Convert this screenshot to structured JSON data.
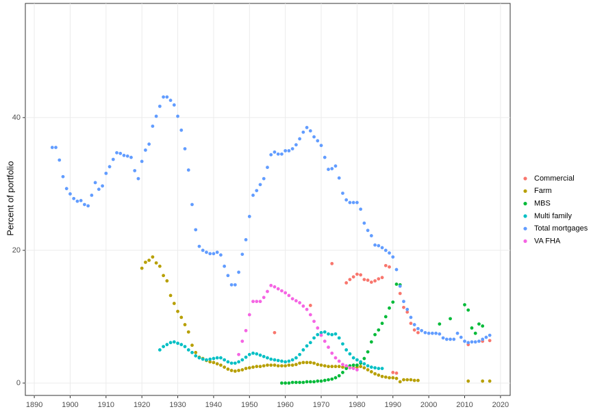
{
  "chart_data": {
    "type": "scatter",
    "y_label": "Percent of portfolio",
    "xlim": [
      1887.5,
      2022.7
    ],
    "ylim": [
      -1.86,
      57.2
    ],
    "xticks": [
      1890,
      1900,
      1910,
      1920,
      1930,
      1940,
      1950,
      1960,
      1970,
      1980,
      1990,
      2000,
      2010,
      2020
    ],
    "yticks": [
      0,
      20,
      40
    ],
    "grid": true,
    "legend": "right",
    "series": [
      {
        "name": "Commercial",
        "color": "#F8766D",
        "x": [
          1957,
          1967,
          1973,
          1977,
          1978,
          1979,
          1980,
          1981,
          1982,
          1983,
          1984,
          1985,
          1986,
          1987,
          1988,
          1989,
          1990,
          1991,
          1992,
          1993,
          1994,
          1995,
          1996,
          1997,
          2011,
          2015,
          2017
        ],
        "values": [
          7.6,
          11.7,
          18.0,
          15.1,
          15.6,
          16.0,
          16.4,
          16.3,
          15.6,
          15.5,
          15.2,
          15.4,
          15.7,
          15.9,
          17.7,
          17.5,
          1.6,
          1.5,
          13.5,
          11.4,
          10.7,
          9.0,
          8.0,
          7.6,
          5.8,
          6.3,
          6.4
        ]
      },
      {
        "name": "Farm",
        "color": "#B79F00",
        "x": [
          1920,
          1921,
          1922,
          1923,
          1924,
          1925,
          1926,
          1927,
          1928,
          1929,
          1930,
          1931,
          1932,
          1933,
          1934,
          1935,
          1936,
          1937,
          1938,
          1939,
          1940,
          1941,
          1942,
          1943,
          1944,
          1945,
          1946,
          1947,
          1948,
          1949,
          1950,
          1951,
          1952,
          1953,
          1954,
          1955,
          1956,
          1957,
          1958,
          1959,
          1960,
          1961,
          1962,
          1963,
          1964,
          1965,
          1966,
          1967,
          1968,
          1969,
          1970,
          1971,
          1972,
          1973,
          1974,
          1975,
          1976,
          1977,
          1978,
          1979,
          1980,
          1981,
          1982,
          1983,
          1984,
          1985,
          1986,
          1987,
          1988,
          1989,
          1990,
          1991,
          1992,
          1993,
          1994,
          1995,
          1996,
          1997,
          2011,
          2015,
          2017
        ],
        "values": [
          17.3,
          18.2,
          18.5,
          19.0,
          18.1,
          17.6,
          16.2,
          15.4,
          13.2,
          12.0,
          10.8,
          9.9,
          8.8,
          7.7,
          5.7,
          4.6,
          3.9,
          3.7,
          3.4,
          3.2,
          3.1,
          2.9,
          2.7,
          2.4,
          2.1,
          1.9,
          1.8,
          1.9,
          2.0,
          2.2,
          2.3,
          2.4,
          2.5,
          2.5,
          2.6,
          2.7,
          2.7,
          2.7,
          2.6,
          2.6,
          2.6,
          2.7,
          2.7,
          2.8,
          3.0,
          3.1,
          3.1,
          3.1,
          3.0,
          2.8,
          2.7,
          2.6,
          2.5,
          2.5,
          2.5,
          2.5,
          2.4,
          2.4,
          2.3,
          2.3,
          2.4,
          2.5,
          2.3,
          2.0,
          1.7,
          1.4,
          1.2,
          1.0,
          0.9,
          0.8,
          0.8,
          0.7,
          0.2,
          0.5,
          0.5,
          0.5,
          0.4,
          0.4,
          0.3,
          0.3,
          0.3
        ]
      },
      {
        "name": "MBS",
        "color": "#00BA38",
        "x": [
          1959,
          1960,
          1961,
          1962,
          1963,
          1964,
          1965,
          1966,
          1967,
          1968,
          1969,
          1970,
          1971,
          1972,
          1973,
          1974,
          1975,
          1976,
          1977,
          1978,
          1979,
          1980,
          1981,
          1982,
          1983,
          1984,
          1985,
          1986,
          1987,
          1988,
          1989,
          1990,
          1991,
          1992,
          2003,
          2006,
          2010,
          2011,
          2012,
          2013,
          2014,
          2015
        ],
        "values": [
          0.0,
          0.0,
          0.0,
          0.1,
          0.1,
          0.1,
          0.1,
          0.2,
          0.2,
          0.2,
          0.3,
          0.3,
          0.4,
          0.5,
          0.6,
          0.8,
          1.1,
          1.6,
          2.2,
          2.6,
          2.7,
          2.7,
          3.0,
          3.7,
          4.7,
          6.2,
          7.3,
          8.0,
          9.0,
          10.0,
          11.3,
          12.2,
          14.9,
          14.8,
          8.9,
          9.7,
          11.8,
          11.0,
          8.3,
          7.5,
          8.9,
          8.6
        ]
      },
      {
        "name": "Multi family",
        "color": "#00BFC4",
        "x": [
          1925,
          1926,
          1927,
          1928,
          1929,
          1930,
          1931,
          1932,
          1933,
          1934,
          1935,
          1936,
          1937,
          1938,
          1939,
          1940,
          1941,
          1942,
          1943,
          1944,
          1945,
          1946,
          1947,
          1948,
          1949,
          1950,
          1951,
          1952,
          1953,
          1954,
          1955,
          1956,
          1957,
          1958,
          1959,
          1960,
          1961,
          1962,
          1963,
          1964,
          1965,
          1966,
          1967,
          1968,
          1969,
          1970,
          1971,
          1972,
          1973,
          1974,
          1975,
          1976,
          1977,
          1978,
          1979,
          1980,
          1981,
          1982,
          1983,
          1984,
          1985,
          1986,
          1987
        ],
        "values": [
          5.0,
          5.5,
          5.8,
          6.1,
          6.2,
          6.0,
          5.8,
          5.5,
          5.0,
          4.6,
          4.1,
          3.8,
          3.6,
          3.5,
          3.6,
          3.7,
          3.8,
          3.8,
          3.5,
          3.2,
          3.0,
          3.0,
          3.2,
          3.5,
          3.9,
          4.3,
          4.5,
          4.4,
          4.2,
          4.0,
          3.8,
          3.6,
          3.5,
          3.4,
          3.3,
          3.2,
          3.3,
          3.5,
          3.8,
          4.3,
          5.0,
          5.6,
          6.1,
          6.8,
          7.3,
          7.6,
          7.7,
          7.4,
          7.3,
          7.4,
          6.8,
          5.9,
          5.0,
          4.4,
          3.8,
          3.5,
          3.2,
          2.9,
          2.6,
          2.4,
          2.3,
          2.2,
          2.2
        ]
      },
      {
        "name": "Total mortgages",
        "color": "#619CFF",
        "x": [
          1895,
          1896,
          1897,
          1898,
          1899,
          1900,
          1901,
          1902,
          1903,
          1904,
          1905,
          1906,
          1907,
          1908,
          1909,
          1910,
          1911,
          1912,
          1913,
          1914,
          1915,
          1916,
          1917,
          1918,
          1919,
          1920,
          1921,
          1922,
          1923,
          1924,
          1925,
          1926,
          1927,
          1928,
          1929,
          1930,
          1931,
          1932,
          1933,
          1934,
          1935,
          1936,
          1937,
          1938,
          1939,
          1940,
          1941,
          1942,
          1943,
          1944,
          1945,
          1946,
          1947,
          1948,
          1949,
          1950,
          1951,
          1952,
          1953,
          1954,
          1955,
          1956,
          1957,
          1958,
          1959,
          1960,
          1961,
          1962,
          1963,
          1964,
          1965,
          1966,
          1967,
          1968,
          1969,
          1970,
          1971,
          1972,
          1973,
          1974,
          1975,
          1976,
          1977,
          1978,
          1979,
          1980,
          1981,
          1982,
          1983,
          1984,
          1985,
          1986,
          1987,
          1988,
          1989,
          1990,
          1991,
          1992,
          1993,
          1994,
          1995,
          1996,
          1997,
          1998,
          1999,
          2000,
          2001,
          2002,
          2003,
          2004,
          2005,
          2006,
          2007,
          2008,
          2009,
          2010,
          2011,
          2012,
          2013,
          2014,
          2015,
          2016,
          2017
        ],
        "values": [
          35.5,
          35.5,
          33.6,
          31.1,
          29.3,
          28.5,
          27.8,
          27.4,
          27.5,
          26.9,
          26.7,
          28.3,
          30.2,
          29.2,
          29.7,
          31.6,
          32.6,
          33.7,
          34.7,
          34.6,
          34.3,
          34.2,
          34.0,
          32.0,
          30.8,
          33.4,
          35.1,
          36.0,
          38.7,
          40.2,
          41.7,
          43.1,
          43.1,
          42.6,
          41.9,
          40.2,
          38.1,
          35.3,
          32.1,
          26.9,
          23.1,
          20.6,
          20.0,
          19.7,
          19.5,
          19.5,
          19.7,
          19.3,
          17.6,
          16.2,
          14.8,
          14.8,
          16.7,
          19.4,
          21.6,
          25.1,
          28.3,
          29.0,
          29.9,
          30.8,
          32.5,
          34.4,
          34.8,
          34.5,
          34.5,
          35.0,
          35.0,
          35.3,
          35.9,
          36.8,
          37.8,
          38.5,
          38.0,
          37.1,
          36.5,
          35.8,
          34.0,
          32.2,
          32.3,
          32.7,
          30.9,
          28.6,
          27.6,
          27.2,
          27.2,
          27.2,
          26.2,
          24.1,
          23.0,
          22.2,
          20.8,
          20.7,
          20.4,
          20.0,
          19.6,
          19.0,
          17.1,
          14.6,
          12.3,
          11.1,
          9.9,
          8.8,
          8.2,
          7.9,
          7.6,
          7.5,
          7.5,
          7.5,
          7.4,
          6.8,
          6.6,
          6.6,
          6.6,
          7.5,
          6.9,
          6.3,
          6.1,
          6.2,
          6.2,
          6.3,
          6.6,
          6.9,
          7.2
        ]
      },
      {
        "name": "VA FHA",
        "color": "#F564E3",
        "x": [
          1947,
          1948,
          1949,
          1950,
          1951,
          1952,
          1953,
          1954,
          1955,
          1956,
          1957,
          1958,
          1959,
          1960,
          1961,
          1962,
          1963,
          1964,
          1965,
          1966,
          1967,
          1968,
          1969,
          1970,
          1971,
          1972,
          1973,
          1974,
          1975,
          1976,
          1977,
          1978,
          1979,
          1980
        ],
        "values": [
          4.3,
          6.3,
          7.9,
          10.3,
          12.3,
          12.3,
          12.3,
          12.9,
          13.8,
          14.7,
          14.5,
          14.2,
          13.9,
          13.6,
          13.2,
          12.7,
          12.4,
          12.1,
          11.6,
          11.1,
          10.3,
          9.3,
          8.3,
          7.2,
          6.3,
          5.4,
          4.5,
          3.8,
          3.3,
          2.8,
          2.6,
          2.3,
          2.2,
          2.0
        ]
      }
    ]
  }
}
